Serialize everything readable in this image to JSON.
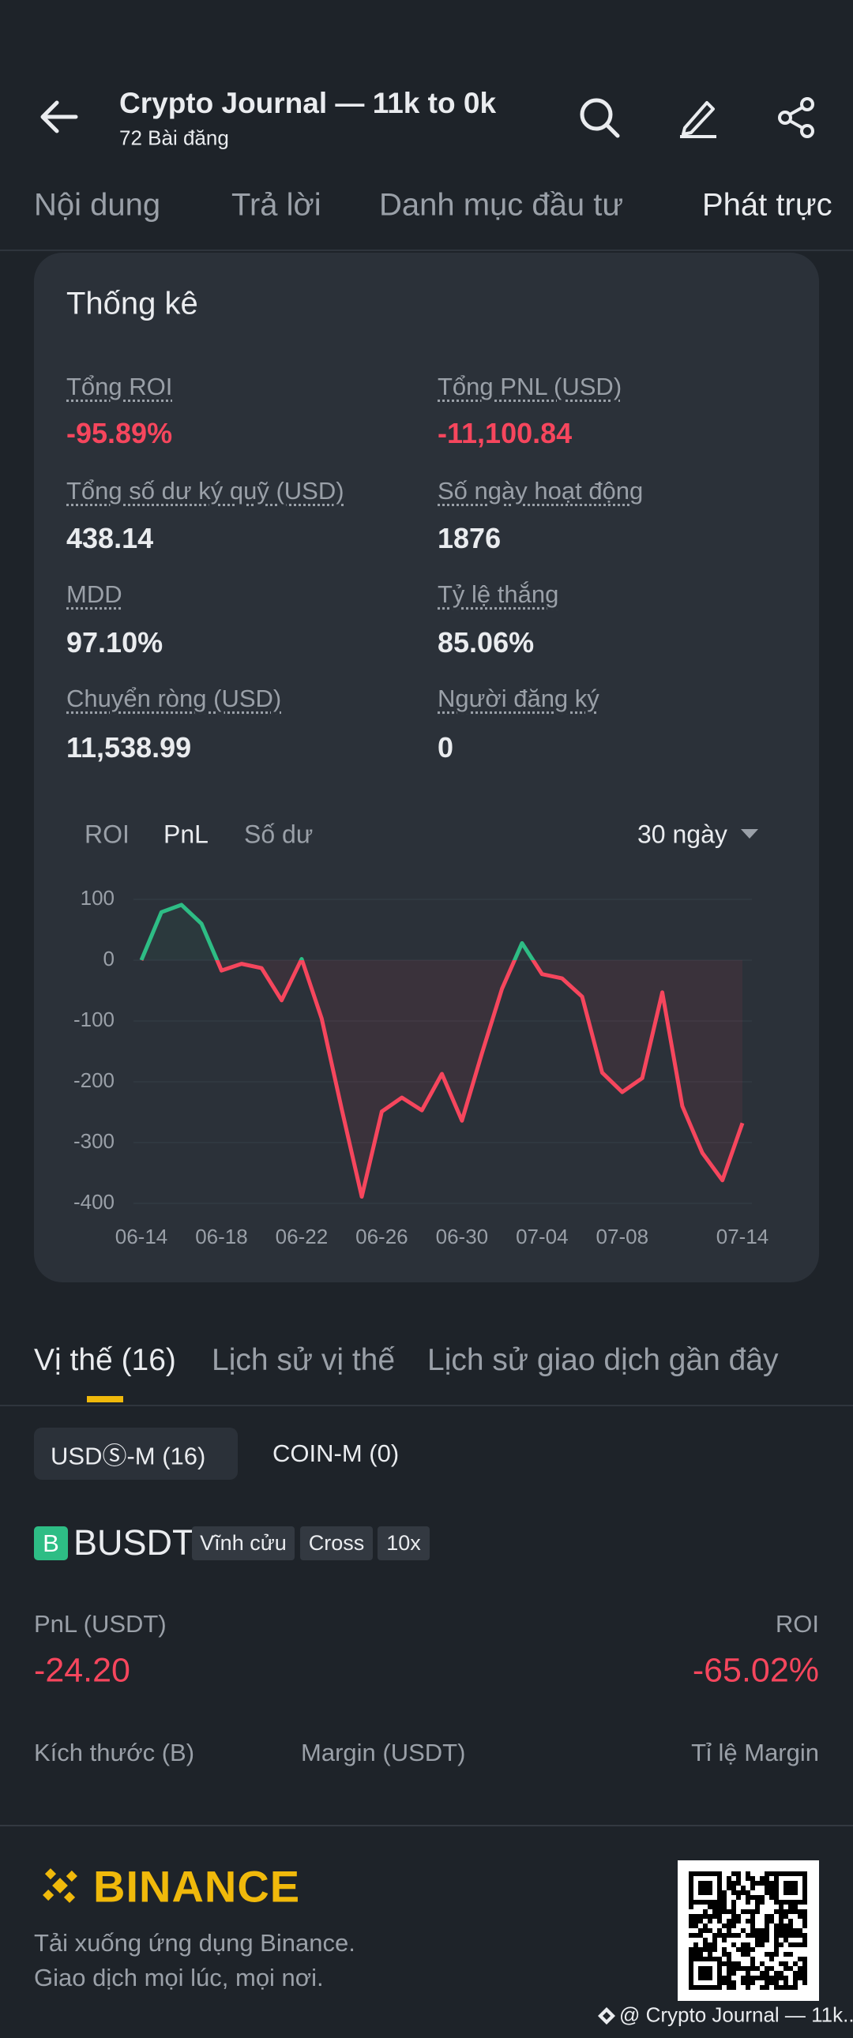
{
  "header": {
    "title": "Crypto Journal — 11k to 0k",
    "subtitle": "72 Bài đăng"
  },
  "tabs": [
    "Nội dung",
    "Trả lời",
    "Danh mục đầu tư",
    "Phát trực"
  ],
  "stats": {
    "title": "Thống kê",
    "items": [
      {
        "label": "Tổng ROI",
        "value": "-95.89%"
      },
      {
        "label": "Tổng PNL (USD)",
        "value": "-11,100.84"
      },
      {
        "label": "Tổng số dư ký quỹ (USD)",
        "value": "438.14"
      },
      {
        "label": "Số ngày hoạt động",
        "value": "1876"
      },
      {
        "label": "MDD",
        "value": "97.10%"
      },
      {
        "label": "Tỷ lệ thắng",
        "value": "85.06%"
      },
      {
        "label": "Chuyển ròng (USD)",
        "value": "11,538.99"
      },
      {
        "label": "Người đăng ký",
        "value": "0"
      }
    ]
  },
  "chart_tabs": [
    "ROI",
    "PnL",
    "Số dư"
  ],
  "chart_range": "30 ngày",
  "chart_data": {
    "type": "line",
    "categories": [
      "06-14",
      null,
      null,
      null,
      "06-18",
      null,
      null,
      null,
      "06-22",
      null,
      null,
      null,
      "06-26",
      null,
      null,
      null,
      "06-30",
      null,
      null,
      null,
      "07-04",
      null,
      null,
      null,
      "07-08",
      null,
      null,
      null,
      null,
      null,
      "07-14"
    ],
    "values": [
      0,
      79,
      91,
      60,
      -17,
      -6,
      -13,
      -66,
      2,
      -96,
      -245,
      -389,
      -249,
      -226,
      -247,
      -187,
      -264,
      -153,
      -47,
      28,
      -23,
      -30,
      -60,
      -185,
      -217,
      -194,
      -53,
      -240,
      -317,
      -362,
      -268
    ],
    "positive_color": "#2ebd85",
    "negative_color": "#f6465d",
    "ylim": [
      -400,
      100
    ],
    "yticks": [
      -400,
      -300,
      -200,
      -100,
      0,
      100
    ],
    "grid": true
  },
  "position_tabs": [
    "Vị thế (16)",
    "Lịch sử vị thế",
    "Lịch sử giao dịch gần đây"
  ],
  "sub_tabs": [
    "USDⓈ-M (16)",
    "COIN-M (0)"
  ],
  "position": {
    "icon": "B",
    "symbol": "BUSDT",
    "tags": [
      "Vĩnh cửu",
      "Cross",
      "10x"
    ],
    "pnl_label": "PnL (USDT)",
    "pnl": "-24.20",
    "roi_label": "ROI",
    "roi": "-65.02%",
    "columns": [
      "Kích thước (B)",
      "Margin (USDT)",
      "Tỉ lệ Margin"
    ]
  },
  "footer": {
    "brand": "BINANCE",
    "lines": [
      "Tải xuống ứng dụng Binance.",
      "Giao dịch mọi lúc, mọi nơi."
    ],
    "watermark": "@ Crypto Journal — 11k..."
  }
}
